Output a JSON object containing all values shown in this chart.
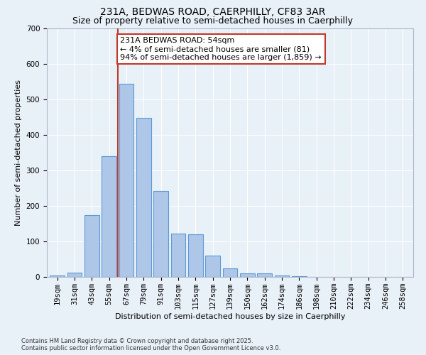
{
  "title1": "231A, BEDWAS ROAD, CAERPHILLY, CF83 3AR",
  "title2": "Size of property relative to semi-detached houses in Caerphilly",
  "xlabel": "Distribution of semi-detached houses by size in Caerphilly",
  "ylabel": "Number of semi-detached properties",
  "footnote1": "Contains HM Land Registry data © Crown copyright and database right 2025.",
  "footnote2": "Contains public sector information licensed under the Open Government Licence v3.0.",
  "annotation_title": "231A BEDWAS ROAD: 54sqm",
  "annotation_line1": "← 4% of semi-detached houses are smaller (81)",
  "annotation_line2": "94% of semi-detached houses are larger (1,859) →",
  "bar_labels": [
    "19sqm",
    "31sqm",
    "43sqm",
    "55sqm",
    "67sqm",
    "79sqm",
    "91sqm",
    "103sqm",
    "115sqm",
    "127sqm",
    "139sqm",
    "150sqm",
    "162sqm",
    "174sqm",
    "186sqm",
    "198sqm",
    "210sqm",
    "222sqm",
    "234sqm",
    "246sqm",
    "258sqm"
  ],
  "bar_values": [
    5,
    12,
    175,
    340,
    545,
    448,
    242,
    122,
    120,
    60,
    25,
    10,
    10,
    5,
    2,
    0,
    0,
    0,
    0,
    0,
    0
  ],
  "bar_color": "#aec6e8",
  "bar_edge_color": "#5b9bd5",
  "vline_x": 3.5,
  "vline_color": "#c0392b",
  "ylim": [
    0,
    700
  ],
  "yticks": [
    0,
    100,
    200,
    300,
    400,
    500,
    600,
    700
  ],
  "bg_color": "#e8f0f8",
  "annotation_box_color": "#ffffff",
  "annotation_box_edge": "#c0392b",
  "grid_color": "#ffffff",
  "title_fontsize": 10,
  "subtitle_fontsize": 9,
  "axis_label_fontsize": 8,
  "tick_fontsize": 7.5,
  "annotation_fontsize": 8
}
